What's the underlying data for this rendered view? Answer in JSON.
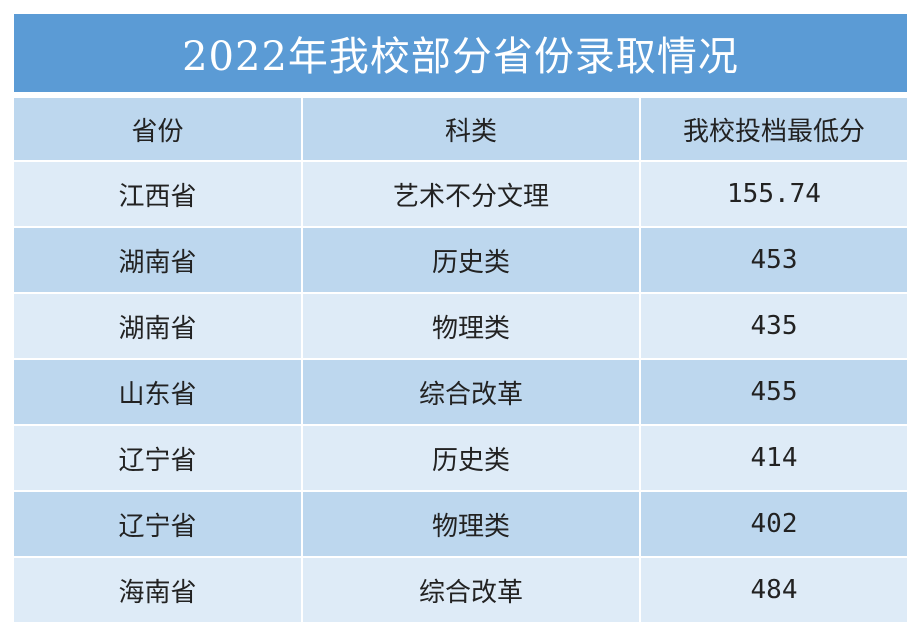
{
  "title": "2022年我校部分省份录取情况",
  "headers": [
    "省份",
    "科类",
    "我校投档最低分"
  ],
  "rows": [
    {
      "province": "江西省",
      "category": "艺术不分文理",
      "score": "155.74"
    },
    {
      "province": "湖南省",
      "category": "历史类",
      "score": "453"
    },
    {
      "province": "湖南省",
      "category": "物理类",
      "score": "435"
    },
    {
      "province": "山东省",
      "category": "综合改革",
      "score": "455"
    },
    {
      "province": "辽宁省",
      "category": "历史类",
      "score": "414"
    },
    {
      "province": "辽宁省",
      "category": "物理类",
      "score": "402"
    },
    {
      "province": "海南省",
      "category": "综合改革",
      "score": "484"
    }
  ],
  "colors": {
    "title_bg": "#5b9bd5",
    "header_bg": "#bdd7ee",
    "row_light": "#deebf7",
    "row_dark": "#bdd7ee"
  }
}
